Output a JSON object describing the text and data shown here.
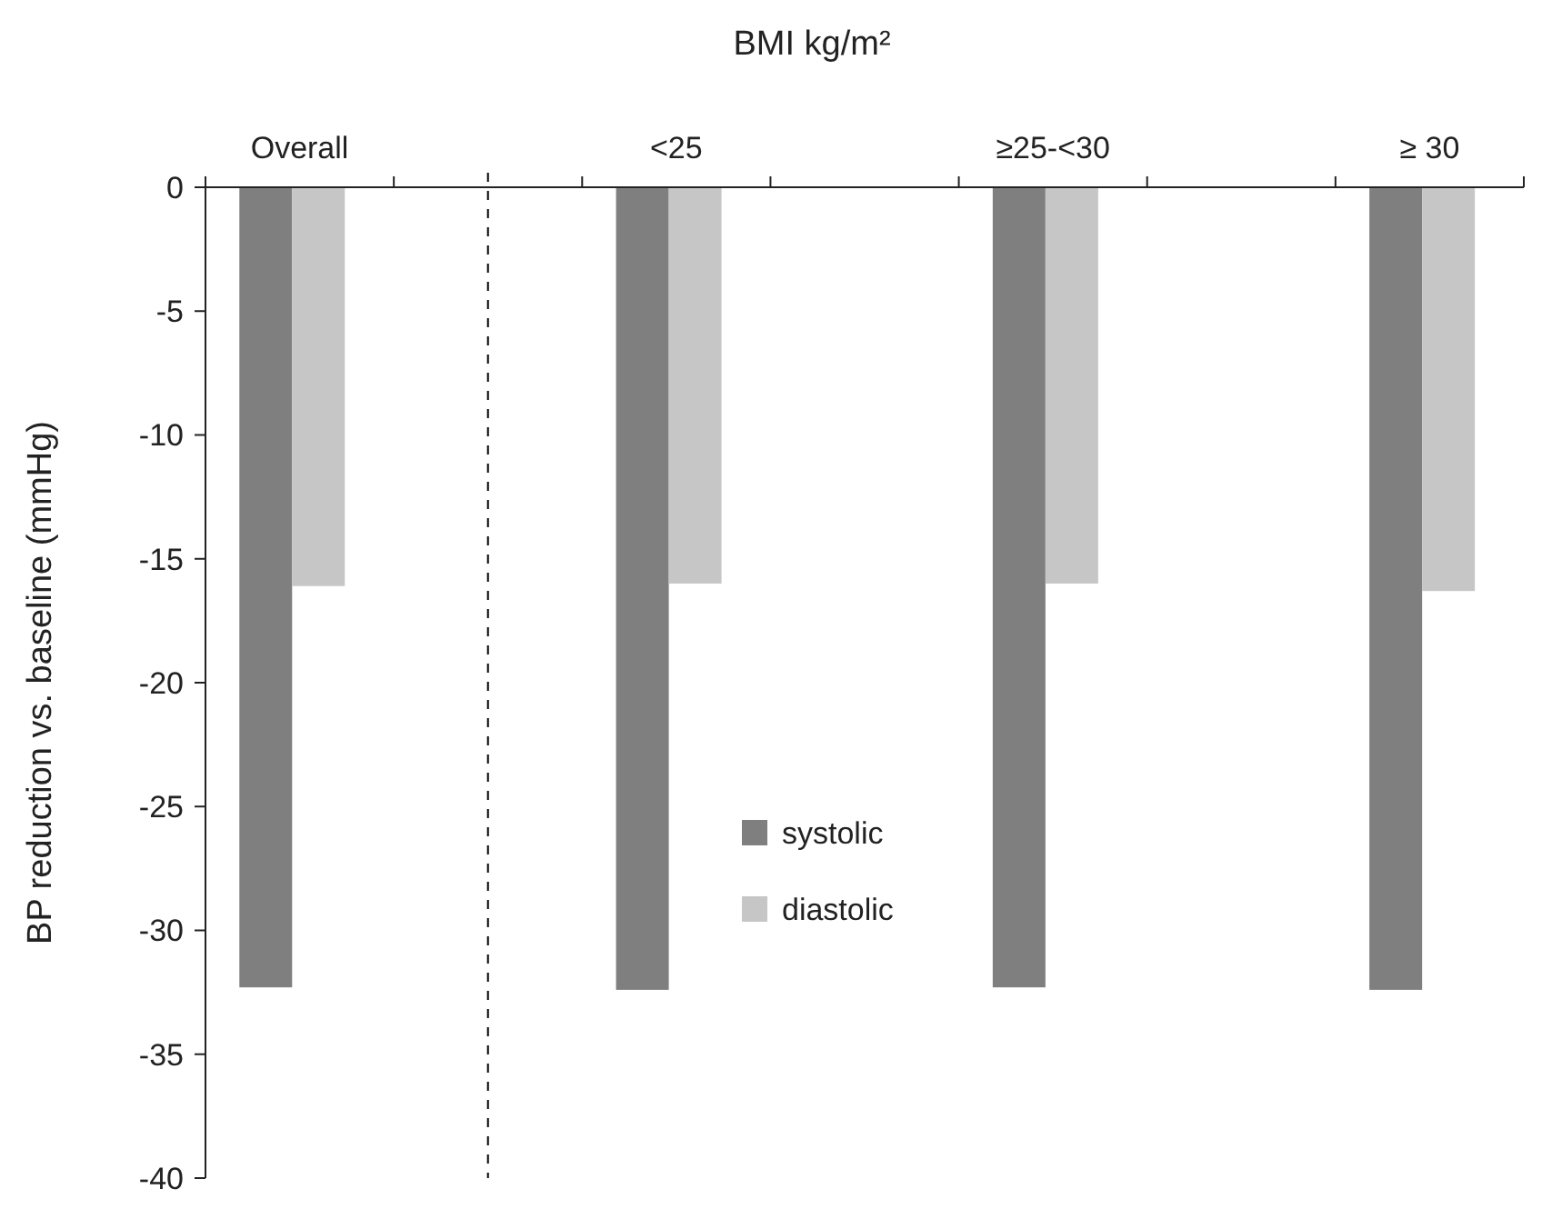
{
  "chart_data": {
    "type": "bar",
    "title": "BMI  kg/m²",
    "ylabel": "BP reduction vs. baseline (mmHg)",
    "categories": [
      "Overall",
      null,
      "<25",
      null,
      "≥25-<30",
      null,
      "≥ 30"
    ],
    "series": [
      {
        "name": "systolic",
        "color": "#7f7f7f",
        "values": [
          -32.3,
          null,
          -32.4,
          null,
          -32.3,
          null,
          -32.4
        ]
      },
      {
        "name": "diastolic",
        "color": "#c6c6c6",
        "values": [
          -16.1,
          null,
          -16.0,
          null,
          -16.0,
          null,
          -16.3
        ]
      }
    ],
    "ylim": [
      -40,
      0
    ],
    "yticks": [
      -40,
      -35,
      -30,
      -25,
      -20,
      -15,
      -10,
      -5,
      0
    ],
    "legend": "bottom"
  }
}
